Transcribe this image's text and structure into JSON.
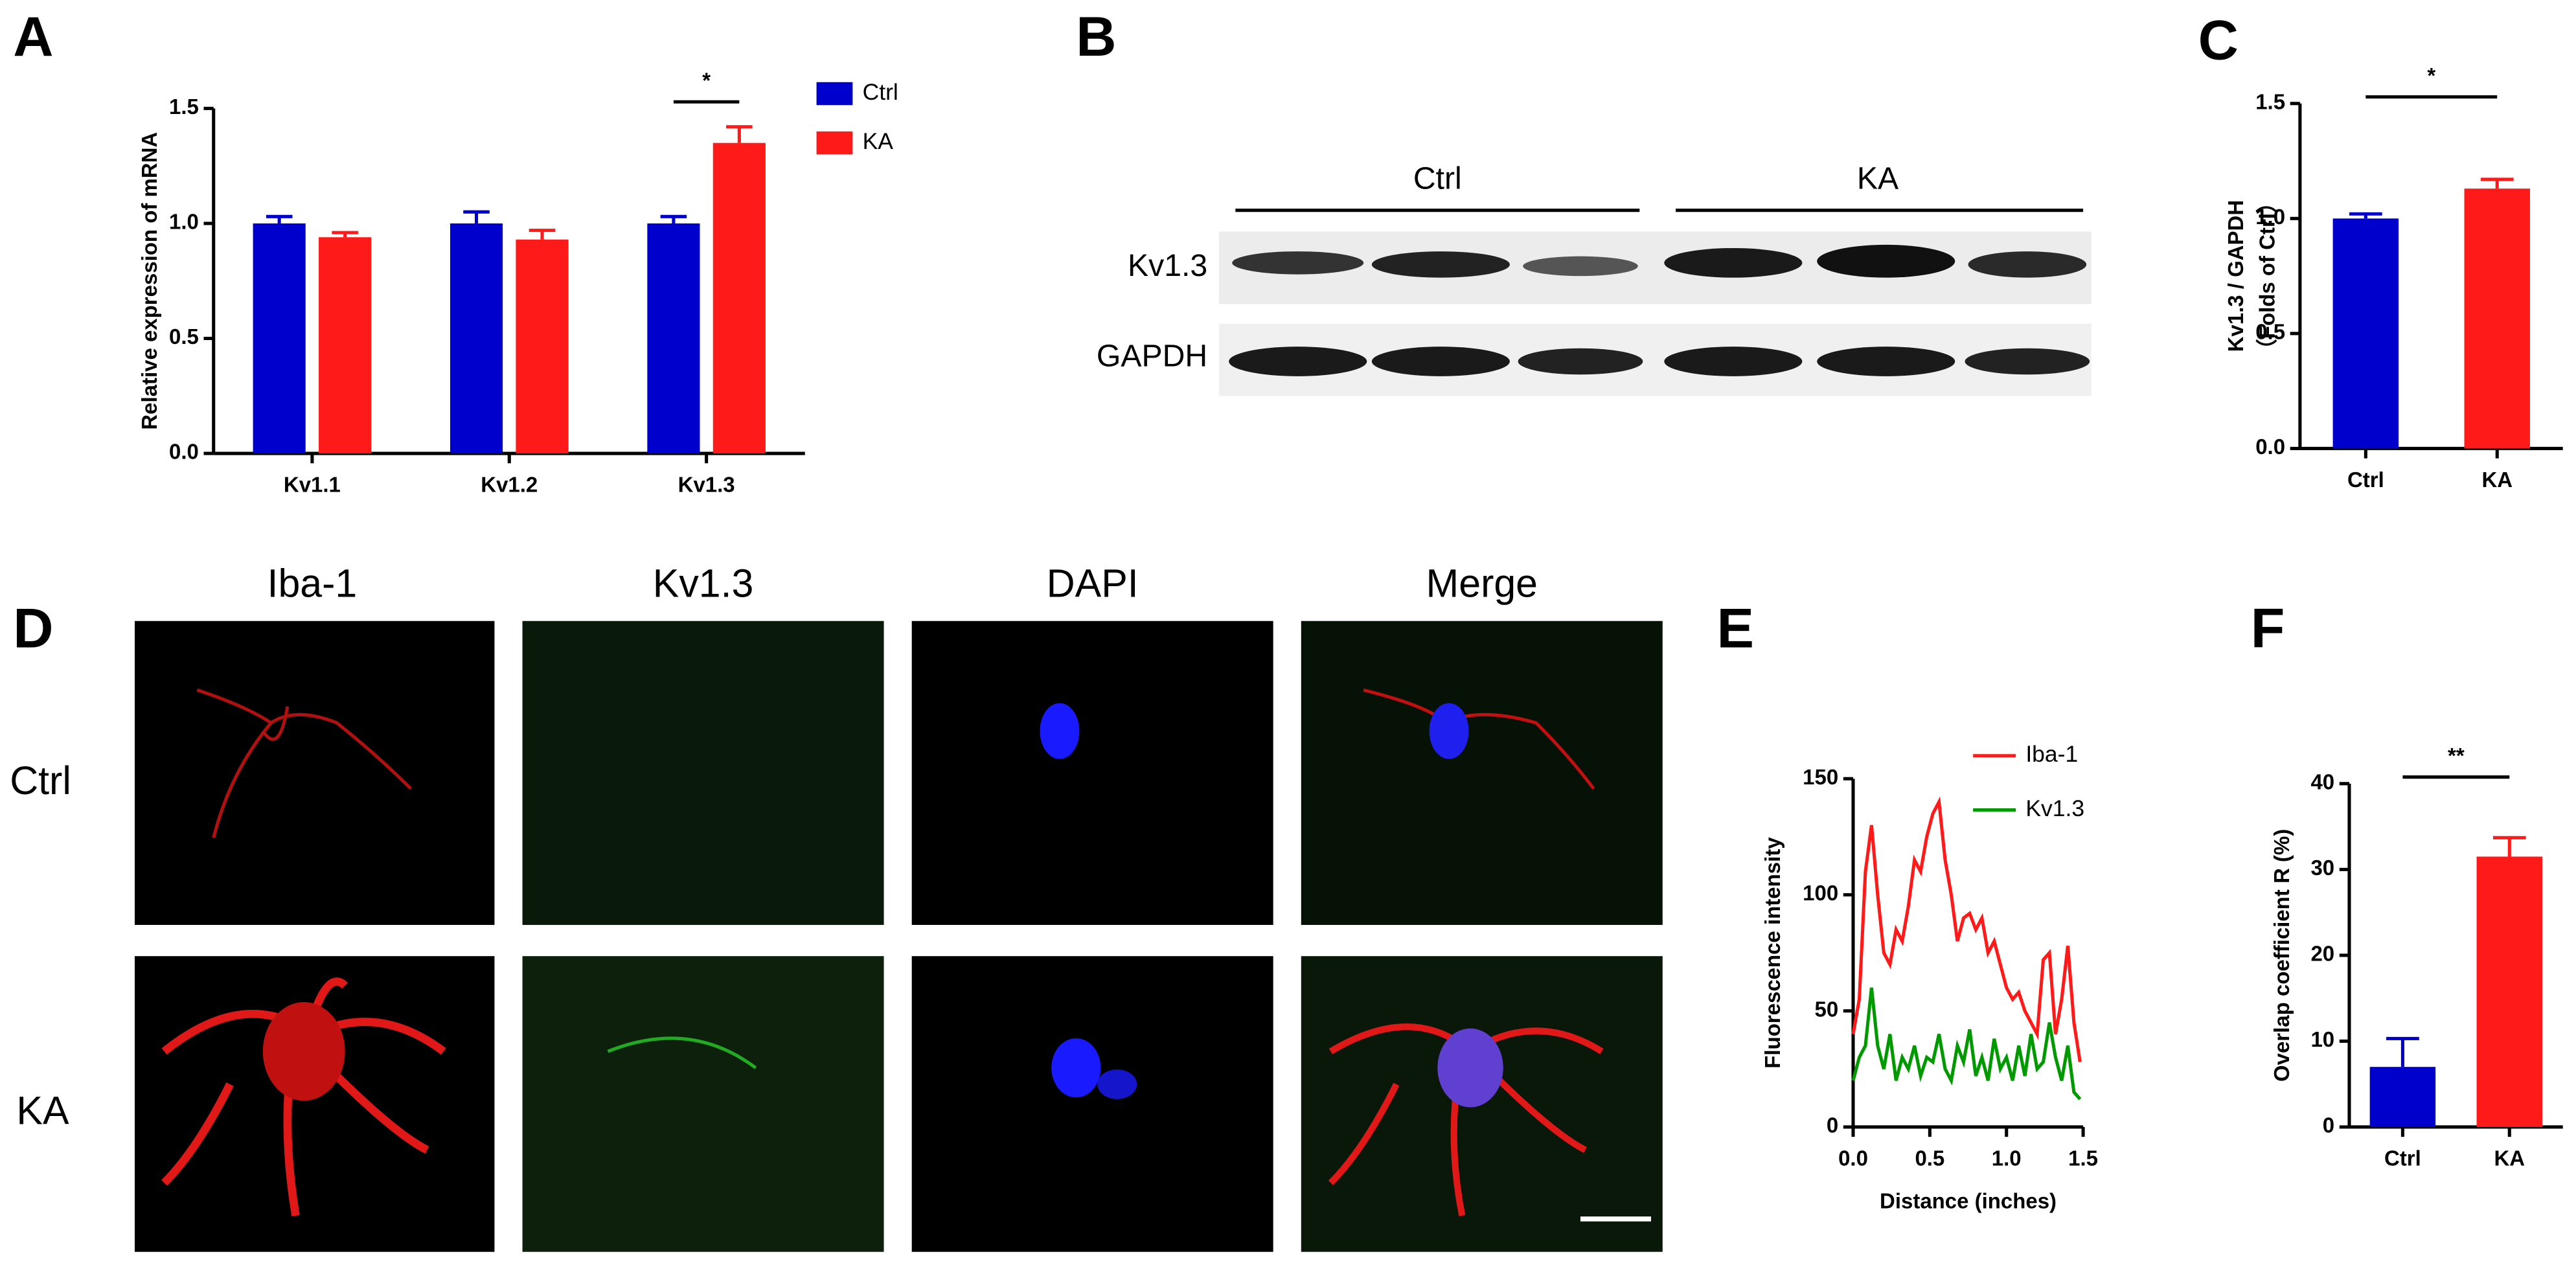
{
  "panel_labels": [
    "A",
    "B",
    "C",
    "D",
    "E",
    "F"
  ],
  "blot": {
    "groups": [
      "Ctrl",
      "KA"
    ],
    "rows": [
      "Kv1.3",
      "GAPDH"
    ]
  },
  "micrographs": {
    "columns": [
      "Iba-1",
      "Kv1.3",
      "DAPI",
      "Merge"
    ],
    "rows": [
      "Ctrl",
      "KA"
    ]
  },
  "chart_data": [
    {
      "type": "bar",
      "ylabel": [
        "Relative expression of mRNA"
      ],
      "categories": [
        "Kv1.1",
        "Kv1.2",
        "Kv1.3"
      ],
      "series": [
        {
          "name": "Ctrl",
          "color": "#0000cc",
          "values": [
            1.0,
            1.0,
            1.0
          ],
          "errors": [
            0.03,
            0.05,
            0.03
          ]
        },
        {
          "name": "KA",
          "color": "#ff1a1a",
          "values": [
            0.94,
            0.93,
            1.35
          ],
          "errors": [
            0.02,
            0.04,
            0.07
          ]
        }
      ],
      "ylim": [
        0,
        1.5
      ],
      "yticks": [
        {
          "value": 0,
          "label": "0.0"
        },
        0.5,
        {
          "value": 1,
          "label": "1.0"
        },
        1.5
      ],
      "annotation": "*"
    },
    {
      "type": "bar",
      "ylabel": [
        "Kv1.3 / GAPDH",
        "（Folds of Ctrl）"
      ],
      "categories": [
        "Ctrl",
        "KA"
      ],
      "values": [
        1.0,
        1.13
      ],
      "errors": [
        0.02,
        0.04
      ],
      "colors": [
        "#0000cc",
        "#ff1a1a"
      ],
      "ylim": [
        0,
        1.5
      ],
      "yticks": [
        {
          "value": 0,
          "label": "0.0"
        },
        0.5,
        {
          "value": 1,
          "label": "1.0"
        },
        1.5
      ],
      "annotation": "*"
    },
    {
      "type": "line",
      "ylabel": [
        "Fluorescence intensity"
      ],
      "xlabel": "Distance (inches)",
      "x": [
        0,
        0.04,
        0.08,
        0.12,
        0.16,
        0.2,
        0.24,
        0.28,
        0.32,
        0.36,
        0.4,
        0.44,
        0.48,
        0.52,
        0.56,
        0.6,
        0.64,
        0.68,
        0.72,
        0.76,
        0.8,
        0.84,
        0.88,
        0.92,
        0.96,
        1,
        1.04,
        1.08,
        1.12,
        1.16,
        1.2,
        1.24,
        1.28,
        1.32,
        1.36,
        1.4,
        1.44,
        1.48
      ],
      "series": [
        {
          "name": "Iba-1",
          "color": "#ff1a1a",
          "values": [
            40,
            55,
            110,
            130,
            100,
            75,
            70,
            85,
            80,
            95,
            115,
            110,
            125,
            135,
            140,
            115,
            100,
            80,
            90,
            92,
            85,
            90,
            75,
            80,
            70,
            60,
            55,
            58,
            50,
            45,
            40,
            72,
            75,
            40,
            55,
            78,
            45,
            28
          ]
        },
        {
          "name": "Kv1.3",
          "color": "#009900",
          "values": [
            20,
            30,
            35,
            60,
            35,
            25,
            40,
            20,
            30,
            25,
            35,
            22,
            30,
            28,
            40,
            25,
            20,
            35,
            28,
            42,
            22,
            30,
            20,
            38,
            25,
            30,
            20,
            35,
            22,
            40,
            25,
            28,
            45,
            30,
            20,
            35,
            15,
            12
          ]
        }
      ],
      "xlim": [
        0,
        1.5
      ],
      "xticks": [
        {
          "value": 0,
          "label": "0.0"
        },
        0.5,
        {
          "value": 1,
          "label": "1.0"
        },
        1.5
      ],
      "ylim": [
        0,
        150
      ],
      "yticks": [
        0,
        50,
        100,
        150
      ]
    },
    {
      "type": "bar",
      "ylabel": [
        "Overlap coefficient R (%)"
      ],
      "categories": [
        "Ctrl",
        "KA"
      ],
      "values": [
        7,
        31.5
      ],
      "errors": [
        3.3,
        2.2
      ],
      "colors": [
        "#0000cc",
        "#ff1a1a"
      ],
      "ylim": [
        0,
        40
      ],
      "yticks": [
        0,
        10,
        20,
        30,
        40
      ],
      "annotation": "**"
    }
  ]
}
